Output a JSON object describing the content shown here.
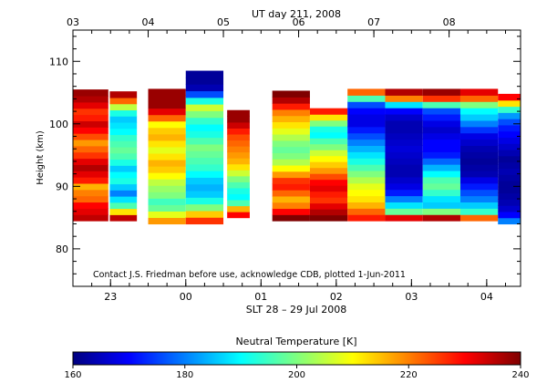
{
  "chart_data": {
    "type": "heatmap",
    "title": "UT day 211, 2008",
    "xlabel": "SLT 28 – 29 Jul 2008",
    "ylabel": "Height (km)",
    "annotation": "Contact J.S. Friedman before use, acknowledge CDB, plotted 1-Jun-2011",
    "x_range_ut": [
      3.0,
      8.95
    ],
    "ylim": [
      74,
      115
    ],
    "y_ticks": [
      80,
      90,
      100,
      110
    ],
    "bottom_ticks": [
      {
        "ut": 3.5,
        "label": "23"
      },
      {
        "ut": 4.5,
        "label": "00"
      },
      {
        "ut": 5.5,
        "label": "01"
      },
      {
        "ut": 6.5,
        "label": "02"
      },
      {
        "ut": 7.5,
        "label": "03"
      },
      {
        "ut": 8.5,
        "label": "04"
      }
    ],
    "top_ticks": [
      {
        "ut": 3.0,
        "label": "03"
      },
      {
        "ut": 4.0,
        "label": "04"
      },
      {
        "ut": 5.0,
        "label": "05"
      },
      {
        "ut": 6.0,
        "label": "06"
      },
      {
        "ut": 7.0,
        "label": "07"
      },
      {
        "ut": 8.0,
        "label": "08"
      }
    ],
    "colorbar": {
      "label": "Neutral Temperature [K]",
      "min": 160,
      "max": 240,
      "ticks": [
        160,
        180,
        200,
        220,
        240
      ]
    },
    "columns": [
      {
        "x0": 3.0,
        "x1": 3.47,
        "h_bottom": 84.5,
        "h_top": 105.5,
        "profile": [
          235,
          232,
          230,
          222,
          220,
          216,
          228,
          232,
          236,
          232,
          226,
          222,
          218,
          224,
          230,
          234,
          228,
          226,
          232,
          236,
          238
        ]
      },
      {
        "x0": 3.49,
        "x1": 3.85,
        "h_bottom": 84.5,
        "h_top": 105.2,
        "profile": [
          235,
          212,
          196,
          188,
          180,
          186,
          192,
          190,
          186,
          192,
          196,
          198,
          196,
          194,
          190,
          188,
          186,
          192,
          205,
          222,
          236
        ]
      },
      {
        "x0": 4.0,
        "x1": 4.5,
        "h_bottom": 84.0,
        "h_top": 105.6,
        "profile": [
          218,
          208,
          198,
          195,
          200,
          202,
          205,
          210,
          214,
          216,
          212,
          208,
          212,
          216,
          214,
          210,
          222,
          232,
          238,
          238,
          238
        ]
      },
      {
        "x0": 4.5,
        "x1": 5.0,
        "h_bottom": 84.0,
        "h_top": 108.5,
        "profile": [
          226,
          214,
          200,
          192,
          186,
          184,
          186,
          190,
          194,
          196,
          198,
          200,
          196,
          192,
          190,
          194,
          200,
          206,
          192,
          176,
          164,
          162,
          162
        ]
      },
      {
        "x0": 5.05,
        "x1": 5.35,
        "h_bottom": 85.0,
        "h_top": 102.2,
        "profile": [
          230,
          216,
          196,
          190,
          192,
          196,
          200,
          206,
          212,
          216,
          218,
          220,
          222,
          224,
          228,
          234,
          238,
          238
        ]
      },
      {
        "x0": 5.65,
        "x1": 6.15,
        "h_bottom": 84.5,
        "h_top": 105.3,
        "profile": [
          240,
          230,
          220,
          216,
          222,
          228,
          226,
          218,
          210,
          204,
          200,
          198,
          200,
          204,
          208,
          212,
          216,
          220,
          228,
          236,
          240
        ]
      },
      {
        "x0": 6.15,
        "x1": 6.65,
        "h_bottom": 84.5,
        "h_top": 102.5,
        "profile": [
          240,
          236,
          232,
          226,
          228,
          232,
          230,
          224,
          218,
          214,
          210,
          206,
          200,
          196,
          190,
          192,
          200,
          212,
          228
        ]
      },
      {
        "x0": 6.65,
        "x1": 7.15,
        "h_bottom": 84.5,
        "h_top": 105.6,
        "profile": [
          228,
          222,
          216,
          212,
          210,
          208,
          204,
          200,
          196,
          192,
          188,
          184,
          180,
          176,
          172,
          168,
          168,
          170,
          176,
          196,
          222
        ]
      },
      {
        "x0": 7.15,
        "x1": 7.65,
        "h_bottom": 84.5,
        "h_top": 105.6,
        "profile": [
          232,
          198,
          188,
          180,
          172,
          168,
          166,
          164,
          164,
          165,
          166,
          167,
          166,
          165,
          164,
          164,
          166,
          170,
          188,
          220,
          236
        ]
      },
      {
        "x0": 7.65,
        "x1": 8.15,
        "h_bottom": 84.5,
        "h_top": 105.6,
        "profile": [
          236,
          200,
          186,
          188,
          194,
          198,
          196,
          190,
          184,
          178,
          172,
          170,
          170,
          168,
          166,
          168,
          172,
          176,
          196,
          226,
          238
        ]
      },
      {
        "x0": 8.15,
        "x1": 8.65,
        "h_bottom": 84.5,
        "h_top": 105.6,
        "profile": [
          222,
          194,
          186,
          180,
          176,
          172,
          168,
          164,
          163,
          162,
          163,
          164,
          166,
          168,
          174,
          180,
          186,
          190,
          200,
          222,
          232
        ]
      },
      {
        "x0": 8.65,
        "x1": 8.95,
        "h_bottom": 84.0,
        "h_top": 104.8,
        "profile": [
          180,
          170,
          166,
          164,
          163,
          162,
          162,
          163,
          164,
          163,
          162,
          164,
          166,
          168,
          170,
          172,
          176,
          182,
          194,
          212,
          230
        ]
      }
    ]
  }
}
